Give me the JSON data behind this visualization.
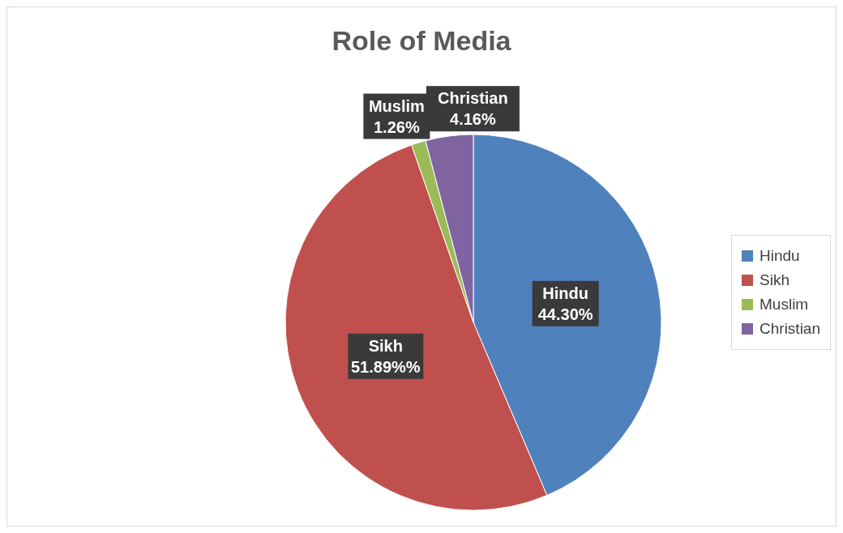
{
  "chart_data": {
    "type": "pie",
    "title": "Role of Media",
    "categories": [
      "Hindu",
      "Sikh",
      "Muslim",
      "Christian"
    ],
    "values": [
      44.3,
      51.89,
      1.26,
      4.16
    ],
    "value_labels": [
      "44.30%",
      "51.89%%",
      "1.26%",
      "4.16%"
    ],
    "colors": [
      "#4f81bd",
      "#c0504d",
      "#9bbb59",
      "#8064a2"
    ],
    "legend": "right"
  }
}
